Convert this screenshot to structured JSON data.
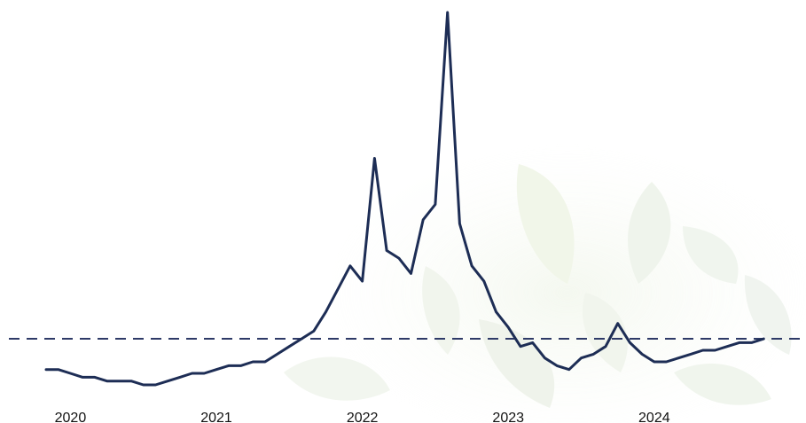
{
  "chart_data": {
    "type": "line",
    "title": "",
    "xlabel": "",
    "ylabel": "",
    "x_tick_labels": [
      "2020",
      "2021",
      "2022",
      "2023",
      "2024"
    ],
    "xlim": [
      "2019-12",
      "2024-12"
    ],
    "ylim": [
      0,
      100
    ],
    "grid": false,
    "legend": "none",
    "reference_line": {
      "value": 15,
      "style": "dashed",
      "color": "#2e3a67"
    },
    "series": [
      {
        "color": "#1d2d55",
        "x": [
          "2019-12",
          "2020-01",
          "2020-02",
          "2020-03",
          "2020-04",
          "2020-05",
          "2020-06",
          "2020-07",
          "2020-08",
          "2020-09",
          "2020-10",
          "2020-11",
          "2020-12",
          "2021-01",
          "2021-02",
          "2021-03",
          "2021-04",
          "2021-05",
          "2021-06",
          "2021-07",
          "2021-08",
          "2021-09",
          "2021-10",
          "2021-11",
          "2021-12",
          "2022-01",
          "2022-02",
          "2022-03",
          "2022-04",
          "2022-05",
          "2022-06",
          "2022-07",
          "2022-08",
          "2022-09",
          "2022-10",
          "2022-11",
          "2022-12",
          "2023-01",
          "2023-02",
          "2023-03",
          "2023-04",
          "2023-05",
          "2023-06",
          "2023-07",
          "2023-08",
          "2023-09",
          "2023-10",
          "2023-11",
          "2023-12",
          "2024-01",
          "2024-02",
          "2024-03",
          "2024-04",
          "2024-05",
          "2024-06",
          "2024-07",
          "2024-08",
          "2024-09",
          "2024-10",
          "2024-11"
        ],
        "values": [
          7,
          7,
          6,
          5,
          5,
          4,
          4,
          4,
          3,
          3,
          4,
          5,
          6,
          6,
          7,
          8,
          8,
          9,
          9,
          11,
          13,
          15,
          17,
          22,
          28,
          34,
          30,
          62,
          38,
          36,
          32,
          46,
          50,
          100,
          45,
          34,
          30,
          22,
          18,
          13,
          14,
          10,
          8,
          7,
          10,
          11,
          13,
          19,
          14,
          11,
          9,
          9,
          10,
          11,
          12,
          12,
          13,
          14,
          14,
          15
        ]
      }
    ]
  }
}
